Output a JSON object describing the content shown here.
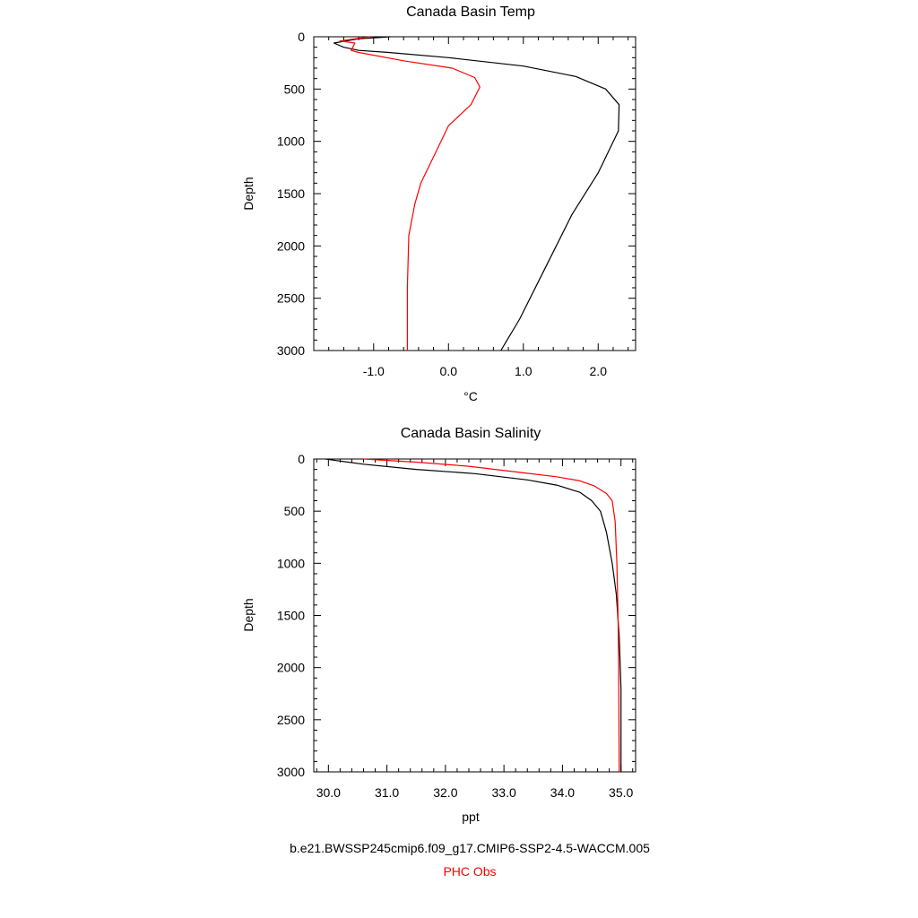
{
  "chart_data": [
    {
      "type": "line",
      "title": "Canada Basin Temp",
      "xlabel": "°C",
      "ylabel": "Depth",
      "xlim": [
        -1.8,
        2.5
      ],
      "ylim": [
        3000,
        0
      ],
      "xticks": [
        -1.0,
        0.0,
        1.0,
        2.0
      ],
      "xtick_labels": [
        "-1.0",
        "0.0",
        "1.0",
        "2.0"
      ],
      "yticks": [
        0,
        500,
        1000,
        1500,
        2000,
        2500,
        3000
      ],
      "ytick_labels": [
        "0",
        "500",
        "1000",
        "1500",
        "2000",
        "2500",
        "3000"
      ],
      "series": [
        {
          "color": "#000000",
          "x": [
            -0.78,
            -1.2,
            -1.53,
            -1.4,
            -1.2,
            -0.8,
            0.0,
            1.0,
            1.7,
            2.1,
            2.28,
            2.27,
            2.0,
            1.65,
            1.3,
            0.95,
            0.7
          ],
          "y": [
            0,
            20,
            60,
            100,
            130,
            150,
            200,
            280,
            380,
            500,
            650,
            900,
            1300,
            1700,
            2200,
            2700,
            3000
          ]
        },
        {
          "color": "#ff0000",
          "x": [
            -1.05,
            -1.45,
            -1.25,
            -1.3,
            -1.2,
            -0.6,
            0.05,
            0.35,
            0.42,
            0.3,
            0.0,
            -0.1,
            -0.37,
            -0.45,
            -0.53,
            -0.55,
            -0.55
          ],
          "y": [
            0,
            40,
            60,
            130,
            150,
            230,
            300,
            390,
            480,
            650,
            850,
            1000,
            1400,
            1600,
            1900,
            2400,
            3000
          ]
        }
      ]
    },
    {
      "type": "line",
      "title": "Canada Basin Salinity",
      "xlabel": "ppt",
      "ylabel": "Depth",
      "xlim": [
        29.75,
        35.25
      ],
      "ylim": [
        3000,
        0
      ],
      "xticks": [
        30.0,
        31.0,
        32.0,
        33.0,
        34.0,
        35.0
      ],
      "xtick_labels": [
        "30.0",
        "31.0",
        "32.0",
        "33.0",
        "34.0",
        "35.0"
      ],
      "yticks": [
        0,
        500,
        1000,
        1500,
        2000,
        2500,
        3000
      ],
      "ytick_labels": [
        "0",
        "500",
        "1000",
        "1500",
        "2000",
        "2500",
        "3000"
      ],
      "series": [
        {
          "color": "#000000",
          "x": [
            29.95,
            30.2,
            30.6,
            31.5,
            32.5,
            33.4,
            33.9,
            34.3,
            34.5,
            34.65,
            34.75,
            34.85,
            34.92,
            34.97,
            35.0,
            35.0
          ],
          "y": [
            0,
            20,
            50,
            100,
            140,
            200,
            250,
            320,
            400,
            500,
            700,
            1000,
            1300,
            1700,
            2200,
            3000
          ]
        },
        {
          "color": "#ff0000",
          "x": [
            30.6,
            31.5,
            32.4,
            33.3,
            33.9,
            34.3,
            34.55,
            34.75,
            34.85,
            34.9,
            34.93,
            34.95,
            34.96,
            34.97
          ],
          "y": [
            0,
            30,
            70,
            130,
            170,
            210,
            260,
            330,
            400,
            600,
            1000,
            1500,
            2000,
            3000
          ]
        }
      ]
    }
  ],
  "footer": {
    "case_name": "b.e21.BWSSP245cmip6.f09_g17.CMIP6-SSP2-4.5-WACCM.005",
    "obs_name": "PHC Obs",
    "case_color": "#000000",
    "obs_color": "#ff0000"
  }
}
